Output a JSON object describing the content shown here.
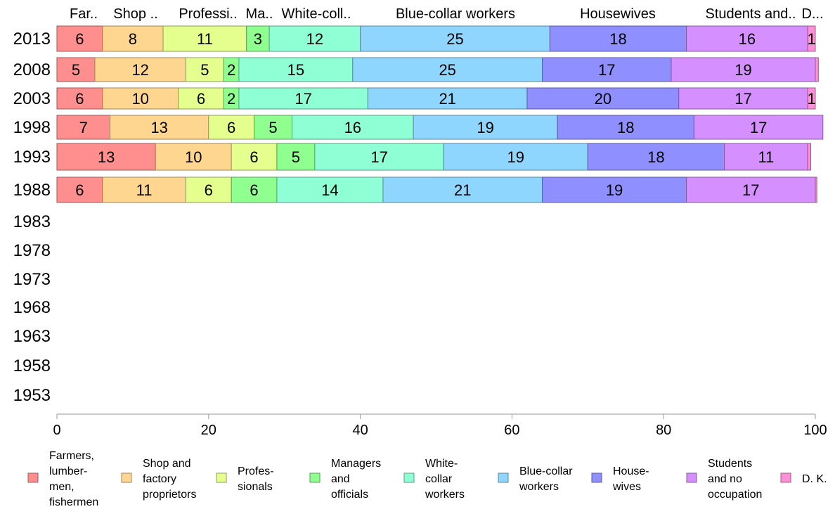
{
  "chart_data": {
    "type": "bar",
    "orientation": "horizontal",
    "stacked": true,
    "categories": [
      "2013",
      "2008",
      "2003",
      "1998",
      "1993",
      "1988",
      "1983",
      "1978",
      "1973",
      "1968",
      "1963",
      "1958",
      "1953"
    ],
    "top_labels": [
      "Far..",
      "Shop ..",
      "Professi..",
      "Ma..",
      "White-coll..",
      "Blue-collar workers",
      "Housewives",
      "Students and..",
      "D..."
    ],
    "series": [
      {
        "name": "Farmers, lumber- men, fishermen",
        "legend_lines": [
          "Farmers,",
          "lumber-",
          "men,",
          "fishermen"
        ],
        "color": "#ff8f8f",
        "values": [
          6,
          5,
          6,
          7,
          13,
          6,
          null,
          null,
          null,
          null,
          null,
          null,
          null
        ]
      },
      {
        "name": "Shop and factory proprietors",
        "legend_lines": [
          "Shop and",
          "factory",
          "proprietors"
        ],
        "color": "#ffd68f",
        "values": [
          8,
          12,
          10,
          13,
          10,
          11,
          null,
          null,
          null,
          null,
          null,
          null,
          null
        ]
      },
      {
        "name": "Profes- sionals",
        "legend_lines": [
          "Profes-",
          "sionals"
        ],
        "color": "#e5ff8f",
        "values": [
          11,
          5,
          6,
          6,
          6,
          6,
          null,
          null,
          null,
          null,
          null,
          null,
          null
        ]
      },
      {
        "name": "Managers and officials",
        "legend_lines": [
          "Managers",
          "and",
          "officials"
        ],
        "color": "#8fff8f",
        "values": [
          3,
          2,
          2,
          5,
          5,
          6,
          null,
          null,
          null,
          null,
          null,
          null,
          null
        ]
      },
      {
        "name": "White- collar workers",
        "legend_lines": [
          "White-",
          "collar",
          "workers"
        ],
        "color": "#8fffd6",
        "values": [
          12,
          15,
          17,
          16,
          17,
          14,
          null,
          null,
          null,
          null,
          null,
          null,
          null
        ]
      },
      {
        "name": "Blue-collar workers",
        "legend_lines": [
          "Blue-collar",
          "workers"
        ],
        "color": "#8fd6ff",
        "values": [
          25,
          25,
          21,
          19,
          19,
          21,
          null,
          null,
          null,
          null,
          null,
          null,
          null
        ]
      },
      {
        "name": "House- wives",
        "legend_lines": [
          "House-",
          "wives"
        ],
        "color": "#8f8fff",
        "values": [
          18,
          17,
          20,
          18,
          18,
          19,
          null,
          null,
          null,
          null,
          null,
          null,
          null
        ]
      },
      {
        "name": "Students and no occupation",
        "legend_lines": [
          "Students",
          "and no",
          "occupation"
        ],
        "color": "#d68fff",
        "values": [
          16,
          19,
          17,
          17,
          11,
          17,
          null,
          null,
          null,
          null,
          null,
          null,
          null
        ]
      },
      {
        "name": "D. K.",
        "legend_lines": [
          "D. K."
        ],
        "color": "#ff8fd6",
        "values": [
          1,
          0.4,
          1,
          0,
          0.4,
          0.2,
          null,
          null,
          null,
          null,
          null,
          null,
          null
        ]
      }
    ],
    "xlim": [
      0,
      100
    ],
    "xticks": [
      0,
      20,
      40,
      60,
      80,
      100
    ],
    "grid": false,
    "legend_position": "bottom"
  }
}
